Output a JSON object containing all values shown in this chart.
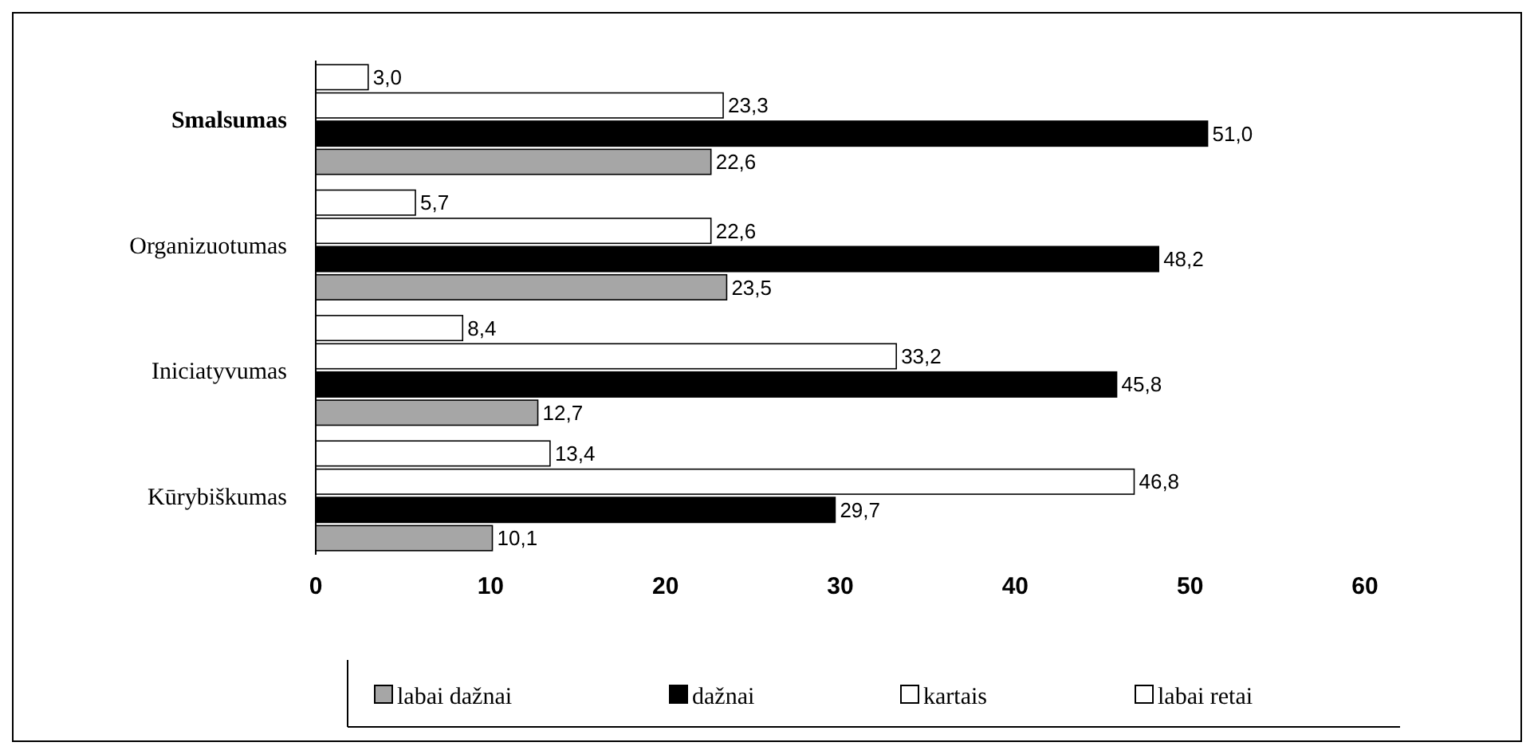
{
  "chart_data": {
    "type": "bar",
    "orientation": "horizontal",
    "categories": [
      "Smalsumas",
      "Organizuotumas",
      "Iniciatyvumas",
      "Kūrybiškumas"
    ],
    "series": [
      {
        "name": "labai dažnai",
        "color": "#a6a6a6",
        "values": [
          22.6,
          23.5,
          12.7,
          10.1
        ],
        "value_labels": [
          "22,6",
          "23,5",
          "12,7",
          "10,1"
        ]
      },
      {
        "name": "dažnai",
        "color": "#000000",
        "values": [
          51.0,
          48.2,
          45.8,
          29.7
        ],
        "value_labels": [
          "51,0",
          "48,2",
          "45,8",
          "29,7"
        ]
      },
      {
        "name": "kartais",
        "color": "#ffffff",
        "values": [
          23.3,
          22.6,
          33.2,
          46.8
        ],
        "value_labels": [
          "23,3",
          "22,6",
          "33,2",
          "46,8"
        ]
      },
      {
        "name": "labai retai",
        "color": "#ffffff",
        "values": [
          3.0,
          5.7,
          8.4,
          13.4
        ],
        "value_labels": [
          "3,0",
          "5,7",
          "8,4",
          "13,4"
        ]
      }
    ],
    "xlim": [
      0,
      60
    ],
    "xticks": [
      0,
      10,
      20,
      30,
      40,
      50,
      60
    ],
    "legend": "bottom"
  }
}
